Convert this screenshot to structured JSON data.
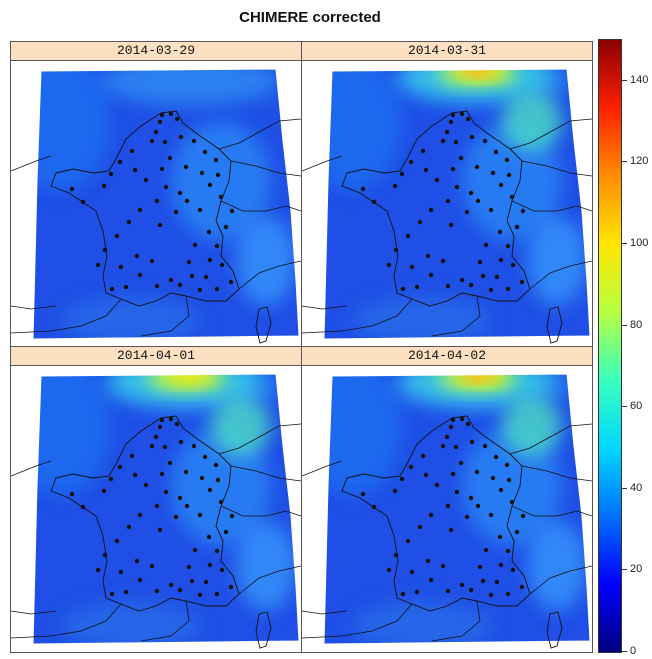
{
  "title": "CHIMERE corrected",
  "panels": [
    {
      "date": "2014-03-29",
      "hotspot": null
    },
    {
      "date": "2014-03-31",
      "hotspot": "strong"
    },
    {
      "date": "2014-04-01",
      "hotspot": "medium"
    },
    {
      "date": "2014-04-02",
      "hotspot": "strong"
    }
  ],
  "colorbar": {
    "min": 0,
    "max": 150,
    "ticks": [
      "0",
      "20",
      "40",
      "60",
      "80",
      "100",
      "120",
      "140"
    ],
    "colors": [
      "#00007f",
      "#0000ff",
      "#0070ff",
      "#00d8ff",
      "#38ffbf",
      "#b7ff40",
      "#ffe600",
      "#ff8c00",
      "#ff2000",
      "#8b0000"
    ]
  }
}
